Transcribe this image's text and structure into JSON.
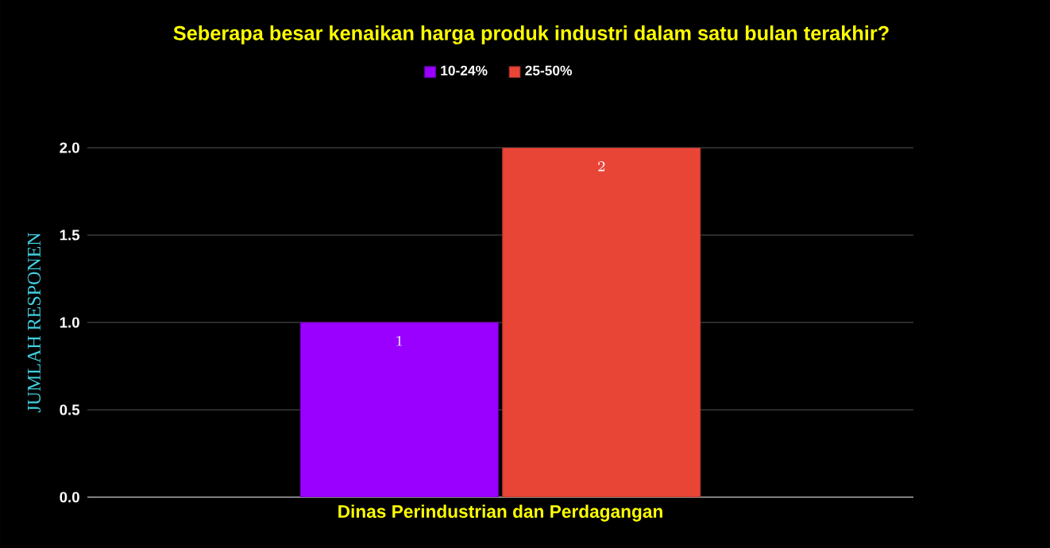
{
  "chart_data": {
    "type": "bar",
    "title": "Seberapa besar kenaikan harga produk industri dalam satu bulan terakhir?",
    "ylabel": "JUMLAH RESPONEN",
    "categories": [
      "Dinas Perindustrian dan Perdagangan"
    ],
    "series": [
      {
        "name": "10-24%",
        "color": "#9900ff",
        "values": [
          1
        ]
      },
      {
        "name": "25-50%",
        "color": "#e94537",
        "values": [
          2
        ]
      }
    ],
    "ylim": [
      0,
      2
    ],
    "yticks": [
      {
        "value": 0,
        "label": "0.0"
      },
      {
        "value": 0.5,
        "label": "0.5"
      },
      {
        "value": 1,
        "label": "1.0"
      },
      {
        "value": 1.5,
        "label": "1.5"
      },
      {
        "value": 2,
        "label": "2.0"
      }
    ],
    "grid": "y",
    "legend": "top",
    "data_labels": true
  }
}
